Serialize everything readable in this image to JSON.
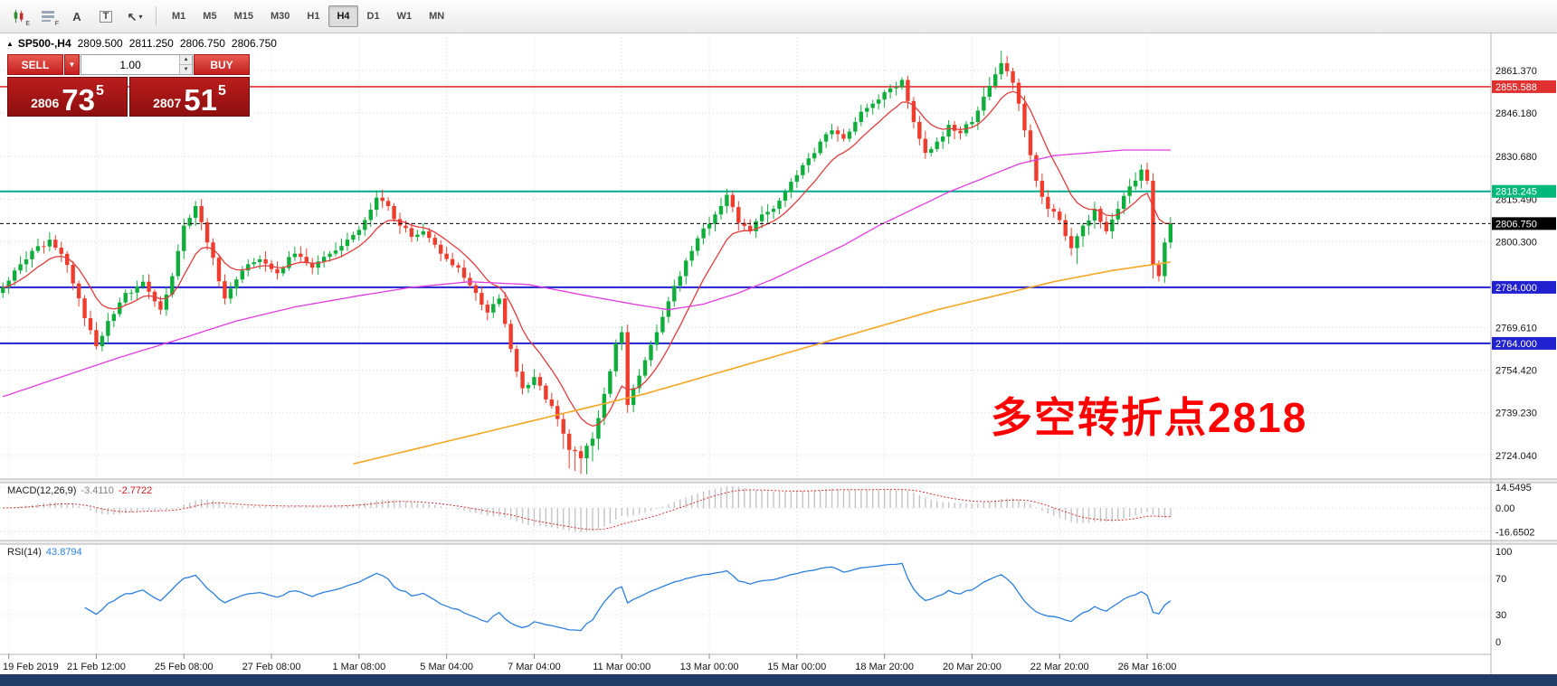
{
  "toolbar": {
    "icons": [
      {
        "name": "charts-overlay-icon",
        "sub": "E"
      },
      {
        "name": "chart-list-icon",
        "sub": "F"
      },
      {
        "name": "text-tool-icon",
        "glyph": "A"
      },
      {
        "name": "textbox-tool-icon",
        "glyph": "T",
        "boxed": true
      },
      {
        "name": "draw-arrow-icon",
        "glyph": "↖",
        "caret": "▾"
      }
    ],
    "timeframes": [
      {
        "label": "M1"
      },
      {
        "label": "M5"
      },
      {
        "label": "M15"
      },
      {
        "label": "M30"
      },
      {
        "label": "H1"
      },
      {
        "label": "H4",
        "active": true
      },
      {
        "label": "D1"
      },
      {
        "label": "W1"
      },
      {
        "label": "MN"
      }
    ]
  },
  "symbol_info": {
    "marker": "▲",
    "symbol": "SP500-,H4",
    "open": "2809.500",
    "high": "2811.250",
    "low": "2806.750",
    "close": "2806.750"
  },
  "trade_panel": {
    "sell_label": "SELL",
    "buy_label": "BUY",
    "volume": "1.00",
    "caret": "▼",
    "spinner_up": "▲",
    "spinner_down": "▼",
    "sell_price": {
      "prefix": "2806",
      "big": "73",
      "sup": "5"
    },
    "buy_price": {
      "prefix": "2807",
      "big": "51",
      "sup": "5"
    }
  },
  "annotation": {
    "text": "多空转折点2818",
    "color": "#ff0000"
  },
  "macd_panel": {
    "label": "MACD(12,26,9)",
    "value_main": "-3.4110",
    "value_signal": "-2.7722",
    "axis_labels": [
      {
        "label": "14.5495",
        "value": 14.5495
      },
      {
        "label": "0.00",
        "value": 0
      },
      {
        "label": "-16.6502",
        "value": -16.6502
      }
    ]
  },
  "rsi_panel": {
    "label": "RSI(14)",
    "value": "43.8794",
    "axis_labels": [
      {
        "label": "100",
        "value": 100
      },
      {
        "label": "70",
        "value": 70
      },
      {
        "label": "30",
        "value": 30
      },
      {
        "label": "0",
        "value": 0
      }
    ]
  },
  "price_axis": {
    "ticks": [
      {
        "label": "2861.370",
        "price": 2861.37
      },
      {
        "label": "2846.180",
        "price": 2846.18
      },
      {
        "label": "2830.680",
        "price": 2830.68
      },
      {
        "label": "2815.490",
        "price": 2815.49
      },
      {
        "label": "2800.300",
        "price": 2800.3
      },
      {
        "label": "2769.610",
        "price": 2769.61
      },
      {
        "label": "2754.420",
        "price": 2754.42
      },
      {
        "label": "2739.230",
        "price": 2739.23
      },
      {
        "label": "2724.040",
        "price": 2724.04
      }
    ],
    "badges": [
      {
        "label": "2855.588",
        "price": 2855.588,
        "bg": "#e03030"
      },
      {
        "label": "2818.245",
        "price": 2818.245,
        "bg": "#00b879"
      },
      {
        "label": "2806.750",
        "price": 2806.75,
        "bg": "#000000"
      },
      {
        "label": "2784.000",
        "price": 2784.0,
        "bg": "#2121cf"
      },
      {
        "label": "2764.000",
        "price": 2764.0,
        "bg": "#2121cf"
      }
    ]
  },
  "time_axis": {
    "labels": [
      "19 Feb 2019",
      "21 Feb 12:00",
      "25 Feb 08:00",
      "27 Feb 08:00",
      "1 Mar 08:00",
      "5 Mar 04:00",
      "7 Mar 04:00",
      "11 Mar 00:00",
      "13 Mar 00:00",
      "15 Mar 00:00",
      "18 Mar 20:00",
      "20 Mar 20:00",
      "22 Mar 20:00",
      "26 Mar 16:00"
    ]
  },
  "chart_data": {
    "type": "candlestick",
    "symbol": "SP500-",
    "timeframe": "H4",
    "candle_count": 201,
    "candle_width": 6.453,
    "price_range": [
      2715.6,
      2873.3
    ],
    "x_grid_indices": [
      1,
      16,
      31,
      46,
      61,
      76,
      91,
      106,
      121,
      136,
      151,
      166,
      181,
      196
    ],
    "up_color": "#0fae3c",
    "down_color": "#ef3c2d",
    "close_waypoints": [
      [
        0,
        2784
      ],
      [
        2,
        2790
      ],
      [
        5,
        2797
      ],
      [
        8,
        2801
      ],
      [
        11,
        2792
      ],
      [
        14,
        2773
      ],
      [
        16,
        2763
      ],
      [
        18,
        2772
      ],
      [
        21,
        2782
      ],
      [
        24,
        2786
      ],
      [
        27,
        2776
      ],
      [
        29,
        2788
      ],
      [
        31,
        2806
      ],
      [
        33,
        2813
      ],
      [
        35,
        2800
      ],
      [
        38,
        2780
      ],
      [
        41,
        2790
      ],
      [
        44,
        2794
      ],
      [
        47,
        2789
      ],
      [
        50,
        2796
      ],
      [
        53,
        2791
      ],
      [
        56,
        2796
      ],
      [
        59,
        2801
      ],
      [
        62,
        2808
      ],
      [
        64,
        2816
      ],
      [
        66,
        2813
      ],
      [
        68,
        2806
      ],
      [
        70,
        2802
      ],
      [
        72,
        2804
      ],
      [
        75,
        2796
      ],
      [
        78,
        2791
      ],
      [
        81,
        2782
      ],
      [
        83,
        2775
      ],
      [
        85,
        2780
      ],
      [
        87,
        2762
      ],
      [
        89,
        2748
      ],
      [
        91,
        2752
      ],
      [
        93,
        2744
      ],
      [
        95,
        2737
      ],
      [
        97,
        2726
      ],
      [
        99,
        2723
      ],
      [
        101,
        2730
      ],
      [
        103,
        2746
      ],
      [
        105,
        2764
      ],
      [
        106,
        2768
      ],
      [
        107,
        2742
      ],
      [
        108,
        2748
      ],
      [
        110,
        2758
      ],
      [
        112,
        2768
      ],
      [
        114,
        2779
      ],
      [
        116,
        2788
      ],
      [
        118,
        2797
      ],
      [
        120,
        2805
      ],
      [
        122,
        2810
      ],
      [
        124,
        2817
      ],
      [
        126,
        2807
      ],
      [
        128,
        2804
      ],
      [
        130,
        2810
      ],
      [
        132,
        2812
      ],
      [
        134,
        2818
      ],
      [
        136,
        2824
      ],
      [
        138,
        2830
      ],
      [
        140,
        2836
      ],
      [
        142,
        2840
      ],
      [
        144,
        2837
      ],
      [
        146,
        2843
      ],
      [
        148,
        2848
      ],
      [
        150,
        2851
      ],
      [
        152,
        2855
      ],
      [
        154,
        2858
      ],
      [
        156,
        2843
      ],
      [
        158,
        2832
      ],
      [
        160,
        2836
      ],
      [
        162,
        2842
      ],
      [
        164,
        2839
      ],
      [
        166,
        2843
      ],
      [
        168,
        2852
      ],
      [
        170,
        2860
      ],
      [
        171,
        2864
      ],
      [
        173,
        2857
      ],
      [
        175,
        2840
      ],
      [
        177,
        2822
      ],
      [
        179,
        2812
      ],
      [
        181,
        2808
      ],
      [
        183,
        2798
      ],
      [
        185,
        2806
      ],
      [
        187,
        2812
      ],
      [
        189,
        2804
      ],
      [
        191,
        2812
      ],
      [
        193,
        2820
      ],
      [
        195,
        2826
      ],
      [
        196,
        2822
      ],
      [
        197,
        2792
      ],
      [
        198,
        2788
      ],
      [
        199,
        2800
      ],
      [
        200,
        2806.75
      ]
    ],
    "ma_fast_period": 10,
    "ma_colors": {
      "fast": "#e23c3c",
      "slow": "#e13ce1",
      "trend": "#f5a623"
    },
    "ma_magenta_waypoints": [
      [
        0,
        2745
      ],
      [
        10,
        2752
      ],
      [
        20,
        2759
      ],
      [
        31,
        2766
      ],
      [
        40,
        2772
      ],
      [
        50,
        2777
      ],
      [
        61,
        2781
      ],
      [
        70,
        2784
      ],
      [
        80,
        2786
      ],
      [
        90,
        2785
      ],
      [
        100,
        2781
      ],
      [
        108,
        2778
      ],
      [
        114,
        2776
      ],
      [
        120,
        2778
      ],
      [
        126,
        2782
      ],
      [
        132,
        2787
      ],
      [
        138,
        2793
      ],
      [
        144,
        2799
      ],
      [
        150,
        2806
      ],
      [
        156,
        2812
      ],
      [
        162,
        2818
      ],
      [
        168,
        2823
      ],
      [
        174,
        2828
      ],
      [
        180,
        2831
      ],
      [
        186,
        2832
      ],
      [
        192,
        2833
      ],
      [
        200,
        2833
      ]
    ],
    "ma_orange_waypoints": [
      [
        60,
        2721
      ],
      [
        70,
        2726
      ],
      [
        80,
        2731
      ],
      [
        90,
        2736
      ],
      [
        100,
        2741
      ],
      [
        110,
        2746
      ],
      [
        120,
        2752
      ],
      [
        130,
        2758
      ],
      [
        140,
        2764
      ],
      [
        150,
        2770
      ],
      [
        160,
        2776
      ],
      [
        170,
        2781
      ],
      [
        180,
        2786
      ],
      [
        190,
        2790
      ],
      [
        200,
        2793
      ]
    ],
    "levels": [
      {
        "name": "resistance-line",
        "price": 2855.588,
        "color": "#e03030",
        "width": 1.6,
        "dash": ""
      },
      {
        "name": "pivot-line",
        "price": 2818.245,
        "color": "#00ab8e",
        "width": 2,
        "dash": ""
      },
      {
        "name": "support-line-1",
        "price": 2784.0,
        "color": "#2121cf",
        "width": 2,
        "dash": ""
      },
      {
        "name": "support-line-2",
        "price": 2764.0,
        "color": "#2121cf",
        "width": 2,
        "dash": ""
      },
      {
        "name": "current-price-line",
        "price": 2806.75,
        "color": "#000000",
        "width": 1,
        "dash": "4,3"
      }
    ],
    "macd": {
      "fast": 12,
      "slow": 26,
      "signal": 9,
      "signal_color": "#e03030",
      "hist_color": "#c4c4c4"
    },
    "rsi": {
      "period": 14,
      "color": "#2a7fde",
      "levels": [
        70,
        30
      ]
    }
  }
}
